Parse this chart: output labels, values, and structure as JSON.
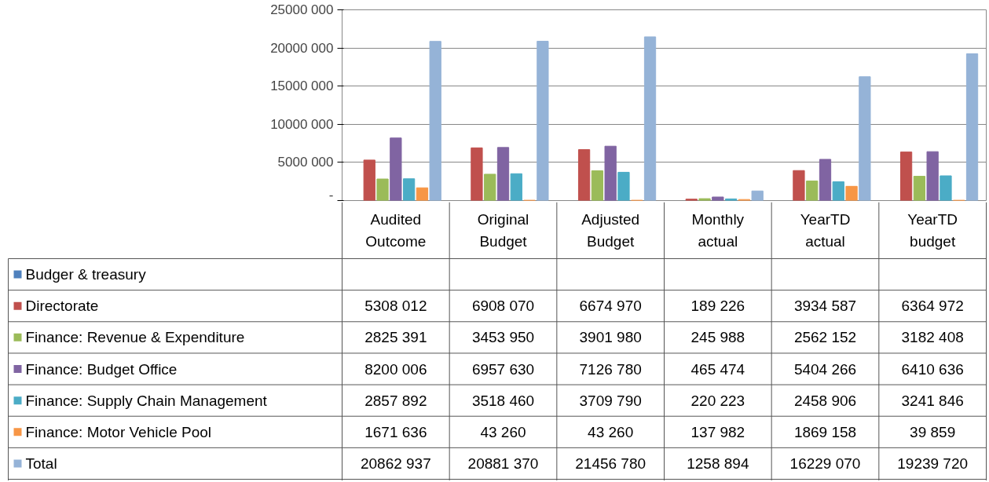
{
  "chart_data": {
    "type": "bar",
    "categories": [
      "Audited Outcome",
      "Original Budget",
      "Adjusted Budget",
      "Monthly actual",
      "YearTD actual",
      "YearTD budget"
    ],
    "series": [
      {
        "name": "Budger & treasury",
        "color": "#4f81bd",
        "values": [
          null,
          null,
          null,
          null,
          null,
          null
        ],
        "value_labels": [
          null,
          null,
          null,
          null,
          null,
          null
        ]
      },
      {
        "name": "Directorate",
        "color": "#c0504d",
        "values": [
          5308012,
          6908070,
          6674970,
          189226,
          3934587,
          6364972
        ],
        "value_labels": [
          "5308 012",
          "6908 070",
          "6674 970",
          "189 226",
          "3934 587",
          "6364 972"
        ]
      },
      {
        "name": "Finance: Revenue & Expenditure",
        "color": "#9bbb59",
        "values": [
          2825391,
          3453950,
          3901980,
          245988,
          2562152,
          3182408
        ],
        "value_labels": [
          "2825 391",
          "3453 950",
          "3901 980",
          "245 988",
          "2562 152",
          "3182 408"
        ]
      },
      {
        "name": "Finance: Budget Office",
        "color": "#8064a2",
        "values": [
          8200006,
          6957630,
          7126780,
          465474,
          5404266,
          6410636
        ],
        "value_labels": [
          "8200 006",
          "6957 630",
          "7126 780",
          "465 474",
          "5404 266",
          "6410 636"
        ]
      },
      {
        "name": "Finance: Supply Chain Management",
        "color": "#4bacc6",
        "values": [
          2857892,
          3518460,
          3709790,
          220223,
          2458906,
          3241846
        ],
        "value_labels": [
          "2857 892",
          "3518 460",
          "3709 790",
          "220 223",
          "2458 906",
          "3241 846"
        ]
      },
      {
        "name": "Finance: Motor Vehicle Pool",
        "color": "#f79646",
        "values": [
          1671636,
          43260,
          43260,
          137982,
          1869158,
          39859
        ],
        "value_labels": [
          "1671 636",
          "43 260",
          "43 260",
          "137 982",
          "1869 158",
          "39 859"
        ]
      },
      {
        "name": "Total",
        "color": "#95b3d7",
        "values": [
          20862937,
          20881370,
          21456780,
          1258894,
          16229070,
          19239720
        ],
        "value_labels": [
          "20862 937",
          "20881 370",
          "21456 780",
          "1258 894",
          "16229 070",
          "19239 720"
        ]
      }
    ],
    "ylim": [
      0,
      25000000
    ],
    "yticks": [
      {
        "value": 0,
        "label": "-"
      },
      {
        "value": 5000000,
        "label": "5000 000"
      },
      {
        "value": 10000000,
        "label": "10000 000"
      },
      {
        "value": 15000000,
        "label": "15000 000"
      },
      {
        "value": 20000000,
        "label": "20000 000"
      },
      {
        "value": 25000000,
        "label": "25000 000"
      }
    ],
    "grid": "y",
    "legend": "bottom"
  }
}
